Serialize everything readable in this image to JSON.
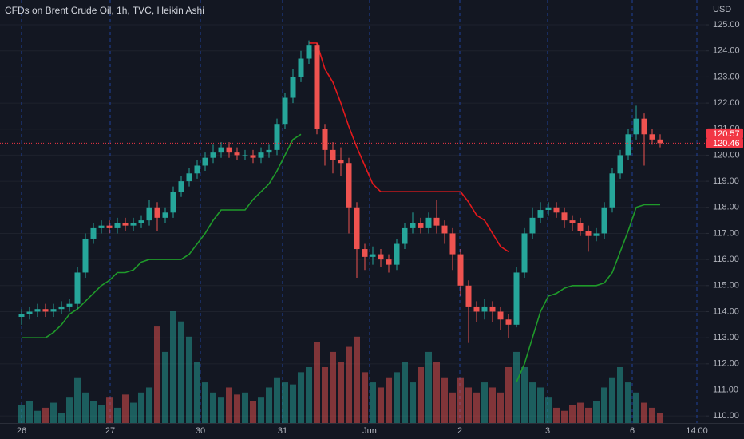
{
  "chart_data": {
    "type": "candlestick",
    "title": "CFDs on Brent Crude Oil, 1h, TVC, Heikin Ashi",
    "currency": "USD",
    "up_color": "#26a69a",
    "down_color": "#ef5350",
    "open": [
      113.8,
      113.9,
      114.0,
      114.1,
      114.0,
      114.1,
      114.2,
      114.3,
      115.5,
      116.8,
      117.2,
      117.3,
      117.2,
      117.4,
      117.3,
      117.4,
      117.5,
      118.0,
      117.6,
      117.8,
      118.6,
      119.0,
      119.3,
      119.6,
      119.9,
      120.1,
      120.3,
      120.1,
      120.0,
      120.0,
      119.9,
      120.1,
      120.2,
      121.2,
      122.2,
      123.0,
      123.7,
      124.2,
      121.0,
      120.2,
      119.8,
      119.7,
      118.0,
      116.4,
      116.1,
      116.2,
      116.0,
      115.8,
      116.6,
      117.2,
      117.4,
      117.2,
      117.6,
      117.3,
      117.0,
      116.2,
      115.0,
      114.2,
      114.0,
      114.2,
      114.0,
      113.7,
      113.5,
      115.5,
      117.0,
      117.6,
      117.9,
      118.0,
      117.8,
      117.5,
      117.4,
      117.1,
      116.9,
      117.0,
      118.0,
      119.3,
      120.0,
      120.8,
      121.4,
      120.8,
      120.6
    ],
    "high": [
      114.1,
      114.2,
      114.3,
      114.3,
      114.3,
      114.4,
      114.5,
      115.7,
      117.0,
      117.4,
      117.5,
      117.5,
      117.6,
      117.6,
      117.6,
      117.7,
      118.3,
      118.2,
      118.0,
      118.8,
      119.2,
      119.5,
      119.8,
      120.1,
      120.4,
      120.5,
      120.5,
      120.3,
      120.2,
      120.2,
      120.3,
      120.4,
      121.4,
      122.4,
      123.3,
      124.0,
      124.4,
      124.3,
      121.2,
      120.5,
      120.3,
      119.9,
      118.2,
      116.6,
      116.5,
      116.4,
      116.2,
      116.8,
      117.4,
      117.8,
      117.6,
      117.8,
      118.3,
      117.5,
      117.2,
      116.4,
      115.2,
      114.4,
      114.5,
      114.4,
      114.2,
      113.9,
      115.7,
      117.2,
      118.0,
      118.2,
      118.2,
      118.2,
      118.0,
      117.7,
      117.6,
      117.3,
      117.2,
      118.2,
      119.5,
      120.2,
      121.0,
      121.9,
      121.6,
      121.0,
      120.8
    ],
    "low": [
      113.5,
      113.7,
      113.8,
      113.8,
      113.8,
      113.9,
      114.0,
      114.1,
      115.3,
      116.6,
      117.0,
      117.0,
      117.0,
      117.1,
      117.1,
      117.2,
      117.3,
      117.1,
      117.4,
      117.6,
      118.4,
      118.8,
      119.1,
      119.4,
      119.7,
      119.9,
      119.9,
      119.8,
      119.8,
      119.7,
      119.7,
      119.9,
      120.0,
      121.0,
      122.0,
      122.8,
      123.5,
      120.8,
      119.6,
      119.3,
      119.2,
      117.0,
      115.3,
      115.6,
      115.8,
      115.7,
      115.5,
      115.6,
      116.4,
      117.0,
      117.0,
      117.0,
      117.0,
      116.6,
      115.6,
      114.6,
      112.8,
      113.6,
      113.7,
      113.6,
      113.3,
      113.0,
      113.4,
      115.3,
      116.8,
      117.4,
      117.7,
      117.6,
      117.2,
      117.1,
      116.9,
      116.3,
      116.7,
      116.8,
      117.8,
      119.1,
      119.8,
      120.6,
      119.6,
      120.4,
      120.3
    ],
    "close": [
      113.9,
      114.0,
      114.1,
      114.0,
      114.1,
      114.2,
      114.3,
      115.5,
      116.8,
      117.2,
      117.3,
      117.2,
      117.4,
      117.3,
      117.4,
      117.5,
      118.0,
      117.6,
      117.8,
      118.6,
      119.0,
      119.3,
      119.6,
      119.9,
      120.1,
      120.3,
      120.1,
      120.0,
      120.0,
      119.9,
      120.1,
      120.2,
      121.2,
      122.2,
      123.0,
      123.7,
      124.2,
      121.0,
      120.2,
      119.8,
      119.7,
      118.0,
      116.4,
      116.1,
      116.2,
      116.0,
      115.8,
      116.6,
      117.2,
      117.4,
      117.2,
      117.6,
      117.3,
      117.0,
      116.2,
      115.0,
      114.2,
      114.0,
      114.2,
      114.0,
      113.7,
      113.5,
      115.5,
      117.0,
      117.6,
      117.9,
      118.0,
      117.8,
      117.5,
      117.4,
      117.1,
      116.9,
      117.0,
      118.0,
      119.3,
      120.0,
      120.8,
      121.4,
      120.8,
      120.6,
      120.46
    ],
    "volume": [
      18,
      22,
      12,
      15,
      20,
      10,
      25,
      45,
      30,
      22,
      18,
      25,
      15,
      28,
      20,
      30,
      35,
      95,
      70,
      110,
      100,
      85,
      60,
      40,
      30,
      25,
      35,
      28,
      30,
      22,
      25,
      35,
      45,
      40,
      38,
      50,
      55,
      80,
      55,
      70,
      60,
      75,
      85,
      50,
      40,
      35,
      45,
      50,
      60,
      40,
      55,
      70,
      60,
      45,
      30,
      45,
      35,
      30,
      40,
      35,
      30,
      55,
      70,
      55,
      40,
      35,
      25,
      15,
      12,
      18,
      20,
      15,
      22,
      35,
      45,
      55,
      40,
      30,
      20,
      15,
      10
    ],
    "stop_lines": [
      {
        "color": "#1f9a2a",
        "values": [
          113.0,
          113.0,
          113.0,
          113.0,
          113.2,
          113.5,
          113.9,
          114.1,
          114.4,
          114.7,
          115.0,
          115.2,
          115.5,
          115.5,
          115.6,
          115.9,
          116.0,
          116.0,
          116.0,
          116.0,
          116.0,
          116.2,
          116.6,
          117.0,
          117.5,
          117.9,
          117.9,
          117.9,
          117.9,
          118.3,
          118.6,
          118.9,
          119.4,
          120.0,
          120.6,
          120.8,
          null,
          null,
          null,
          null,
          null,
          null,
          null,
          null,
          null,
          null,
          null,
          null,
          null,
          null,
          null,
          null,
          null,
          null,
          null,
          null,
          null,
          null,
          null,
          null,
          null,
          null,
          111.3,
          112.0,
          113.0,
          114.0,
          114.6,
          114.7,
          114.9,
          115.0,
          115.0,
          115.0,
          115.0,
          115.1,
          115.5,
          116.3,
          117.1,
          118.0,
          118.1,
          118.1,
          118.1
        ]
      },
      {
        "color": "#e3191c",
        "values": [
          null,
          null,
          null,
          null,
          null,
          null,
          null,
          null,
          null,
          null,
          null,
          null,
          null,
          null,
          null,
          null,
          null,
          null,
          null,
          null,
          null,
          null,
          null,
          null,
          null,
          null,
          null,
          null,
          null,
          null,
          null,
          null,
          null,
          null,
          null,
          null,
          124.3,
          124.3,
          123.3,
          122.8,
          122.0,
          121.1,
          120.3,
          119.6,
          118.9,
          118.6,
          118.6,
          118.6,
          118.6,
          118.6,
          118.6,
          118.6,
          118.6,
          118.6,
          118.6,
          118.6,
          118.2,
          117.7,
          117.5,
          117.0,
          116.5,
          116.3,
          null,
          null,
          null,
          null,
          null,
          null,
          null,
          null,
          null,
          null,
          null,
          null,
          null,
          null,
          null,
          null,
          null,
          null,
          null
        ]
      }
    ],
    "last_prices": [
      120.57,
      120.46
    ],
    "last_price_color": "#f23645",
    "ylim": [
      109.73,
      125.95
    ],
    "yticks": [
      {
        "value": 110,
        "label": "110.00"
      },
      {
        "value": 111,
        "label": "111.00"
      },
      {
        "value": 112,
        "label": "112.00"
      },
      {
        "value": 113,
        "label": "113.00"
      },
      {
        "value": 114,
        "label": "114.00"
      },
      {
        "value": 115,
        "label": "115.00"
      },
      {
        "value": 116,
        "label": "116.00"
      },
      {
        "value": 117,
        "label": "117.00"
      },
      {
        "value": 118,
        "label": "118.00"
      },
      {
        "value": 119,
        "label": "119.00"
      },
      {
        "value": 120,
        "label": "120.00"
      },
      {
        "value": 121,
        "label": "121.00"
      },
      {
        "value": 122,
        "label": "122.00"
      },
      {
        "value": 123,
        "label": "123.00"
      },
      {
        "value": 124,
        "label": "124.00"
      },
      {
        "value": 125,
        "label": "125.00"
      }
    ],
    "xlim": [
      -2.7,
      85.7
    ],
    "xticks": [
      {
        "value": 0,
        "label": "26"
      },
      {
        "value": 11.1,
        "label": "27"
      },
      {
        "value": 22.4,
        "label": "30"
      },
      {
        "value": 32.7,
        "label": "31"
      },
      {
        "value": 43.6,
        "label": "Jun"
      },
      {
        "value": 54.9,
        "label": "2"
      },
      {
        "value": 65.9,
        "label": "3"
      },
      {
        "value": 76.5,
        "label": "6"
      },
      {
        "value": 84.6,
        "label": "14:00"
      }
    ],
    "grid": true
  }
}
